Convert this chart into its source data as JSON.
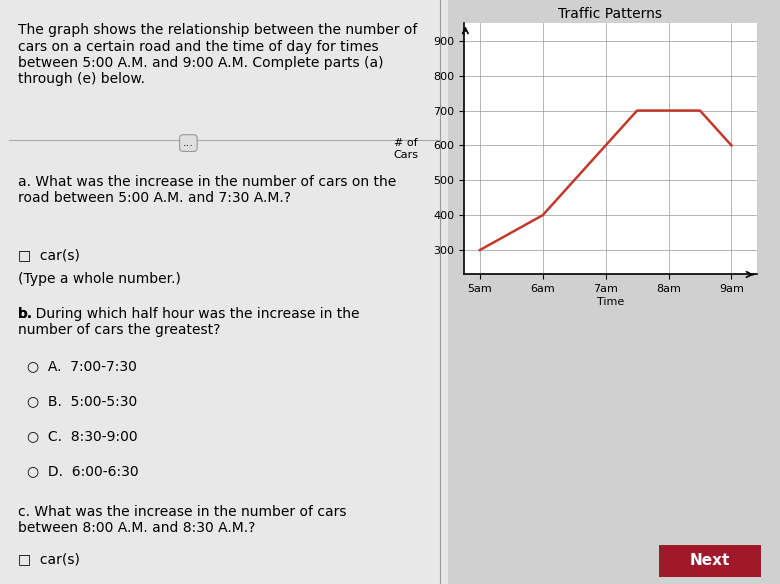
{
  "title": "Traffic Patterns",
  "xlabel": "Time",
  "ylabel_line1": "# of",
  "ylabel_line2": "Cars",
  "x_times": [
    5.0,
    6.0,
    7.0,
    7.5,
    8.0,
    8.5,
    9.0
  ],
  "y_values": [
    300,
    400,
    600,
    700,
    700,
    700,
    600
  ],
  "x_ticks": [
    5,
    6,
    7,
    8,
    9
  ],
  "x_tick_labels": [
    "5am",
    "6am",
    "7am",
    "8am",
    "9am"
  ],
  "y_ticks": [
    300,
    400,
    500,
    600,
    700,
    800,
    900
  ],
  "ylim": [
    230,
    950
  ],
  "xlim": [
    4.75,
    9.4
  ],
  "line_color": "#c0392b",
  "grid_color": "#aaaaaa",
  "bg_color": "#ffffff",
  "page_bg": "#d0d0d0",
  "left_panel_bg": "#e8e8e8",
  "title_fontsize": 10,
  "axis_label_fontsize": 8,
  "tick_fontsize": 8,
  "text_fontsize": 10,
  "left_text_intro": "The graph shows the relationship between the number of\ncars on a certain road and the time of day for times\nbetween 5:00 A.M. and 9:00 A.M. Complete parts (a)\nthrough (e) below.",
  "divider_btn_text": "...",
  "part_a_text": "a. What was the increase in the number of cars on the\nroad between 5:00 A.M. and 7:30 A.M.?",
  "part_a_answer": "car(s)",
  "part_a_note": "(Type a whole number.)",
  "part_b_text": "b. During which half hour was the increase in the\nnumber of cars the greatest?",
  "part_b_options": [
    "A.  7:00-7:30",
    "B.  5:00-5:30",
    "C.  8:30-9:00",
    "D.  6:00-6:30"
  ],
  "part_c_text": "c. What was the increase in the number of cars\nbetween 8:00 A.M. and 8:30 A.M.?",
  "part_c_answer": "car(s)",
  "next_btn_color": "#a0192a",
  "next_btn_text": "Next"
}
